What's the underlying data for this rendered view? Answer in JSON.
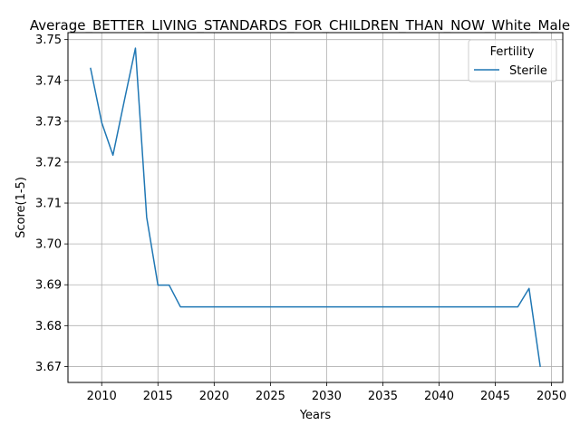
{
  "chart_data": {
    "type": "line",
    "title": "Average_BETTER_LIVING_STANDARDS_FOR_CHILDREN_THAN_NOW_White_Male",
    "xlabel": "Years",
    "ylabel": "Score(1-5)",
    "xlim": [
      2007,
      2051
    ],
    "ylim": [
      3.6661,
      3.7517
    ],
    "xticks": [
      2010,
      2015,
      2020,
      2025,
      2030,
      2035,
      2040,
      2045,
      2050
    ],
    "yticks": [
      3.67,
      3.68,
      3.69,
      3.7,
      3.71,
      3.72,
      3.73,
      3.74,
      3.75
    ],
    "ytick_labels": [
      "3.67",
      "3.68",
      "3.69",
      "3.70",
      "3.71",
      "3.72",
      "3.73",
      "3.74",
      "3.75"
    ],
    "grid": true,
    "legend": {
      "title": "Fertility",
      "placement": "top-right"
    },
    "series": [
      {
        "name": "Sterile",
        "color": "#1f77b4",
        "x": [
          2009,
          2010,
          2011,
          2012,
          2013,
          2014,
          2015,
          2016,
          2017,
          2018,
          2019,
          2020,
          2021,
          2022,
          2023,
          2024,
          2025,
          2026,
          2027,
          2028,
          2029,
          2030,
          2031,
          2032,
          2033,
          2034,
          2035,
          2036,
          2037,
          2038,
          2039,
          2040,
          2041,
          2042,
          2043,
          2044,
          2045,
          2046,
          2047,
          2048,
          2049
        ],
        "y": [
          3.7431,
          3.7297,
          3.7217,
          3.7349,
          3.7479,
          3.7065,
          3.6899,
          3.6899,
          3.6846,
          3.6846,
          3.6846,
          3.6846,
          3.6846,
          3.6846,
          3.6846,
          3.6846,
          3.6846,
          3.6846,
          3.6846,
          3.6846,
          3.6846,
          3.6846,
          3.6846,
          3.6846,
          3.6846,
          3.6846,
          3.6846,
          3.6846,
          3.6846,
          3.6846,
          3.6846,
          3.6846,
          3.6846,
          3.6846,
          3.6846,
          3.6846,
          3.6846,
          3.6846,
          3.6846,
          3.6891,
          3.6699
        ]
      }
    ]
  }
}
